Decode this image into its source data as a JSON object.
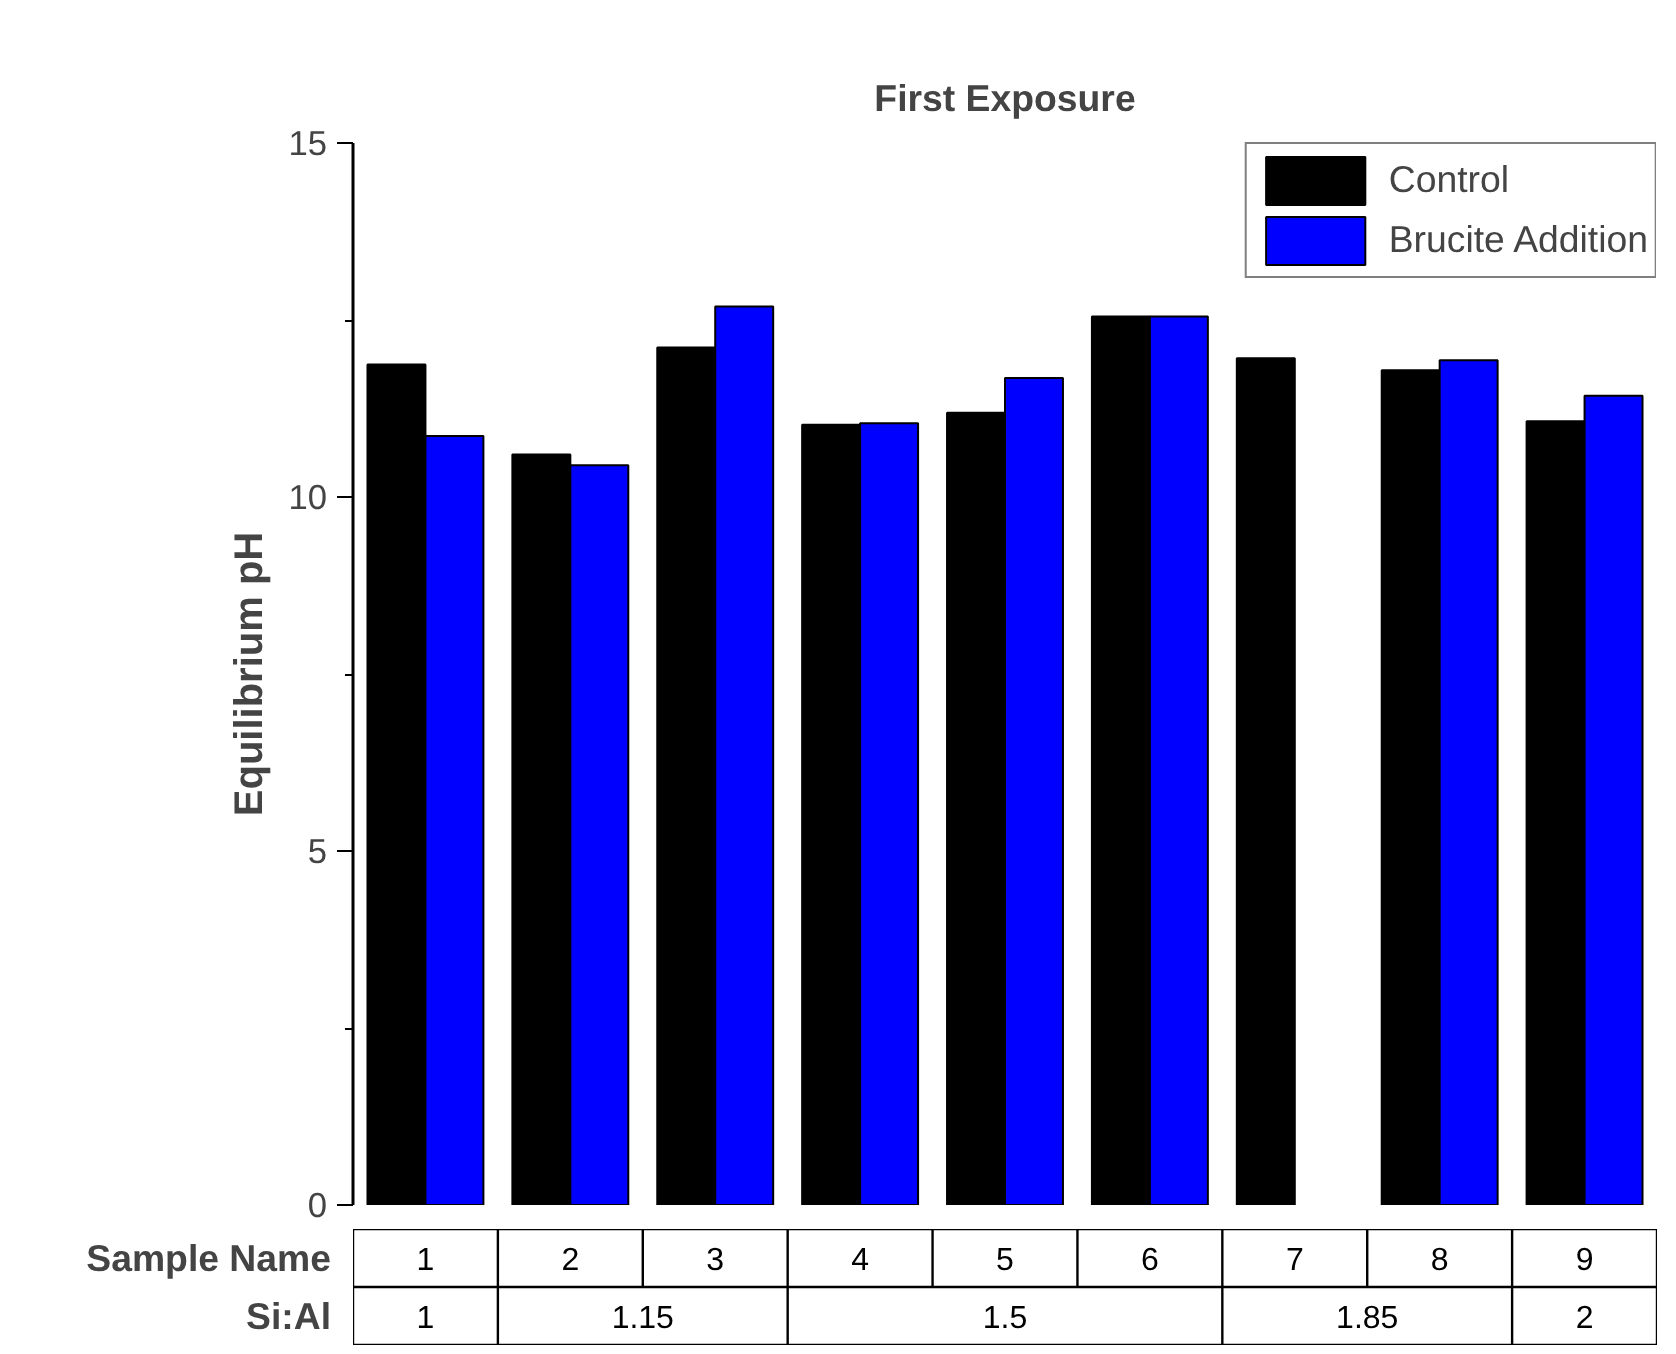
{
  "chart_data": {
    "type": "bar",
    "title": "First Exposure",
    "xlabel": "Sample Name",
    "ylabel": "Equilibrium pH",
    "categories": [
      "1",
      "2",
      "3",
      "4",
      "5",
      "6",
      "7",
      "8",
      "9"
    ],
    "series": [
      {
        "name": "Control",
        "color": "#000000",
        "values": [
          11.87,
          10.6,
          12.11,
          11.02,
          11.19,
          12.55,
          11.96,
          11.79,
          11.07
        ]
      },
      {
        "name": "Brucite Addition",
        "color": "#0000ff",
        "values": [
          10.86,
          10.45,
          12.69,
          11.04,
          11.68,
          12.55,
          null,
          11.93,
          11.43
        ]
      }
    ],
    "ylim": [
      0,
      15
    ],
    "yticks": [
      0,
      5,
      10,
      15
    ],
    "grid": false,
    "legend": "top right",
    "annotations": [
      "Si:Al",
      "1",
      "1.15",
      "1.5",
      "1.85",
      "2"
    ]
  }
}
